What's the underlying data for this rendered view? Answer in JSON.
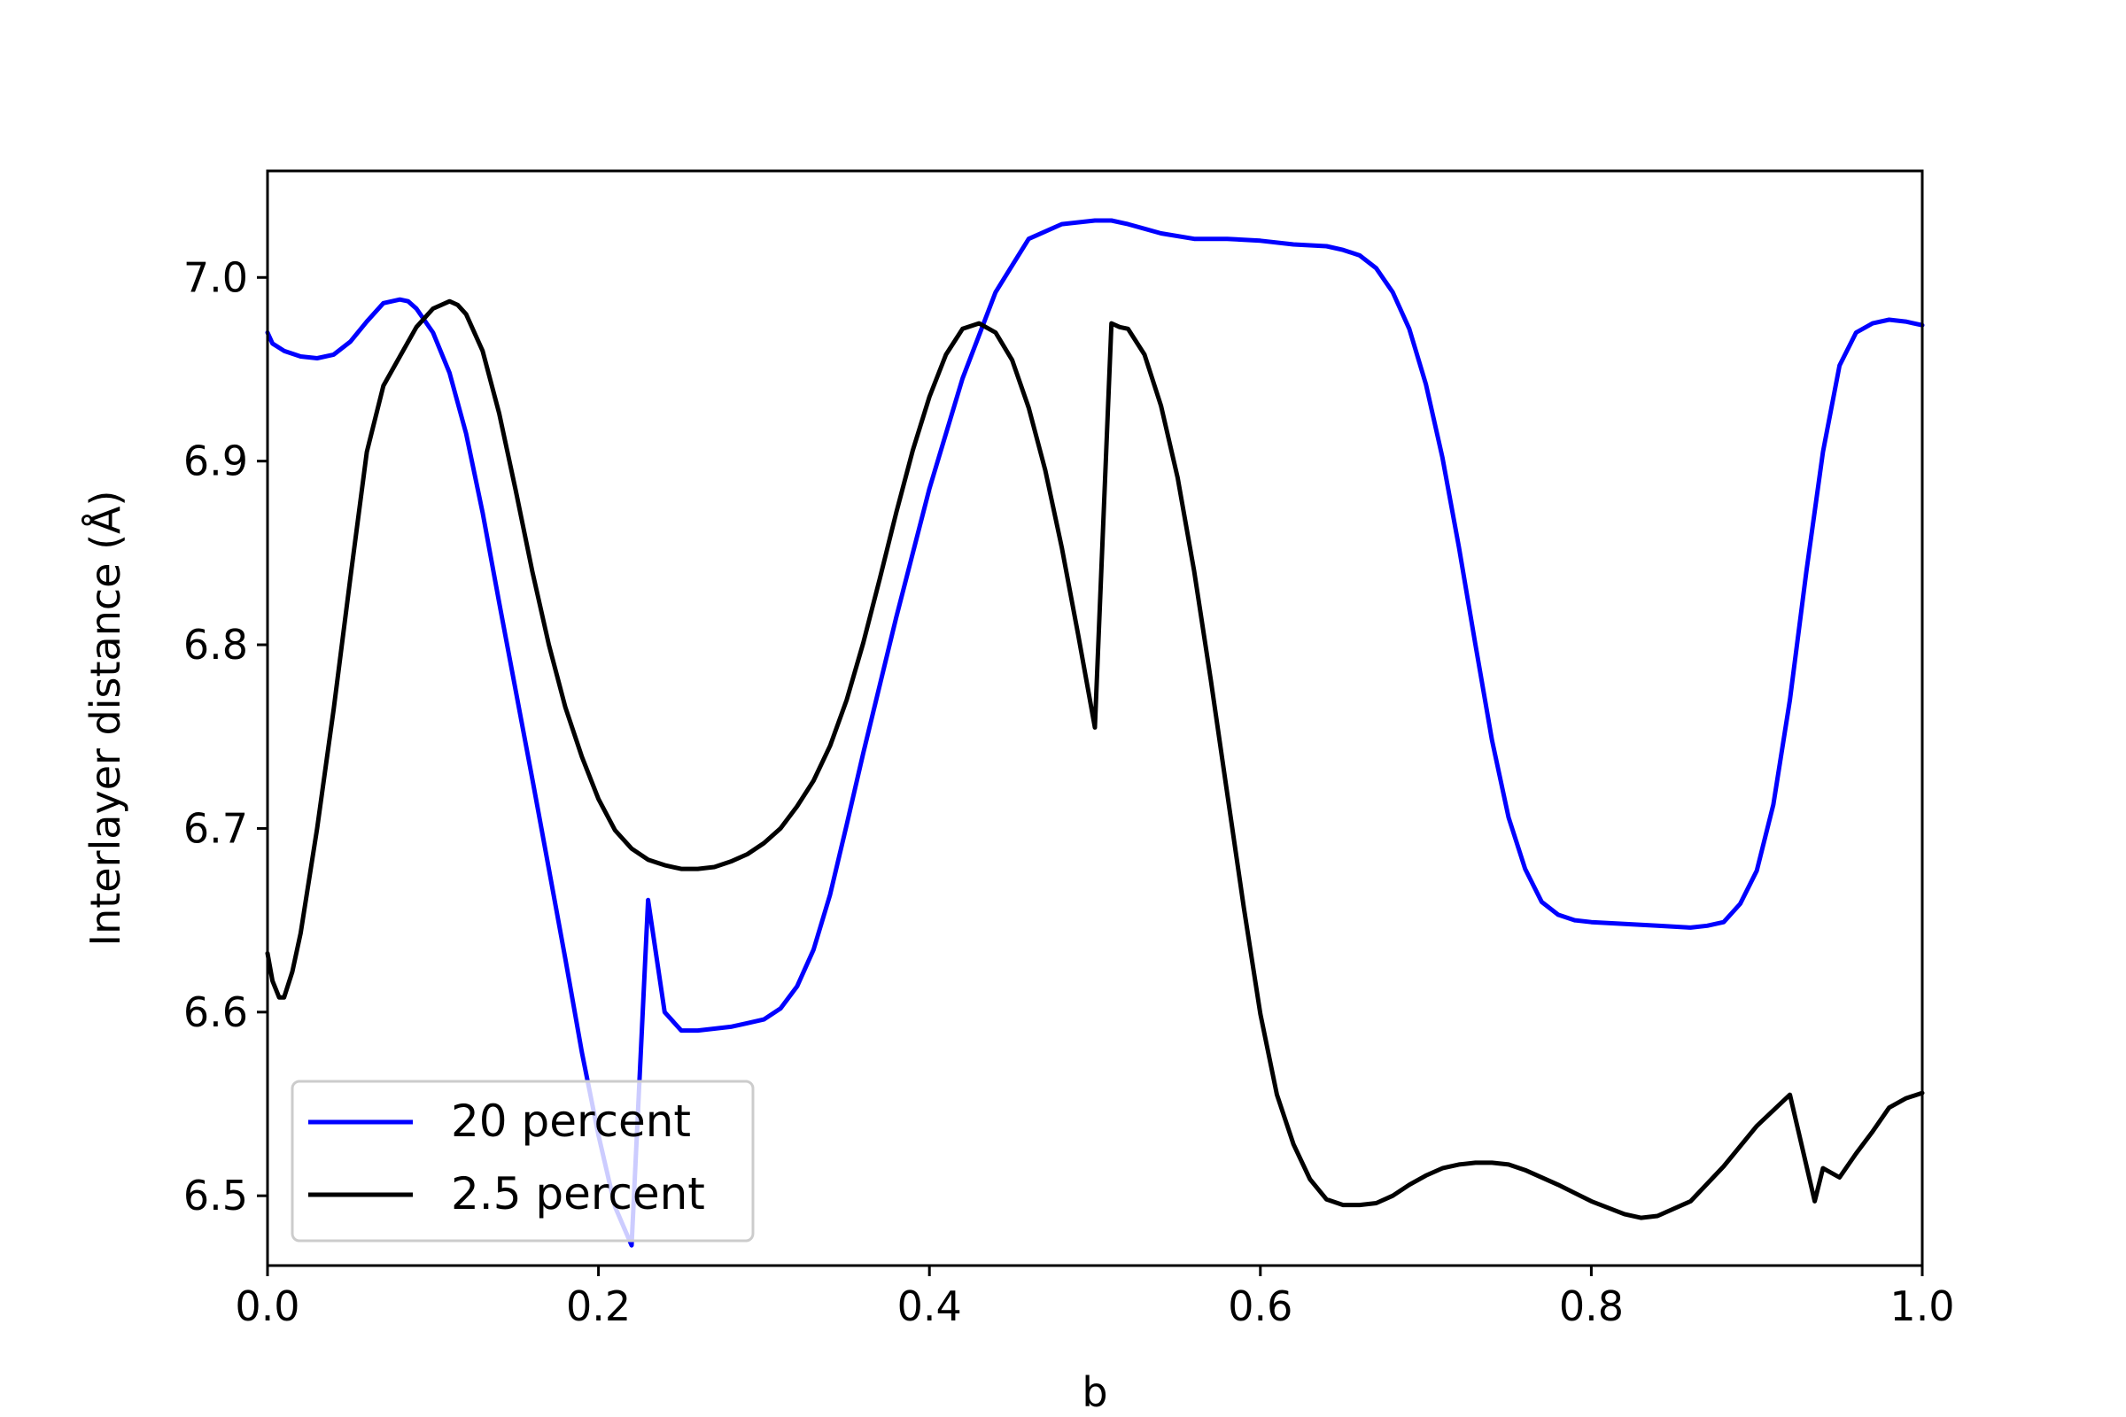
{
  "chart_data": {
    "type": "line",
    "title": "",
    "xlabel": "b",
    "ylabel": "Interlayer distance (Å)",
    "xlim": [
      0.0,
      1.0
    ],
    "ylim": [
      6.462,
      7.058
    ],
    "xticks": [
      "0.0",
      "0.2",
      "0.4",
      "0.6",
      "0.8",
      "1.0"
    ],
    "yticks": [
      "6.5",
      "6.6",
      "6.7",
      "6.8",
      "6.9",
      "7.0"
    ],
    "grid": false,
    "legend_position": "lower-left",
    "series": [
      {
        "name": "20 percent",
        "color": "#0000ff",
        "x": [
          0.0,
          0.003,
          0.01,
          0.02,
          0.03,
          0.04,
          0.05,
          0.06,
          0.07,
          0.08,
          0.085,
          0.09,
          0.1,
          0.11,
          0.12,
          0.13,
          0.14,
          0.15,
          0.16,
          0.17,
          0.18,
          0.19,
          0.2,
          0.21,
          0.22,
          0.23,
          0.24,
          0.25,
          0.26,
          0.27,
          0.28,
          0.29,
          0.3,
          0.31,
          0.32,
          0.33,
          0.34,
          0.35,
          0.36,
          0.38,
          0.4,
          0.42,
          0.44,
          0.46,
          0.48,
          0.5,
          0.51,
          0.52,
          0.54,
          0.56,
          0.58,
          0.6,
          0.62,
          0.64,
          0.65,
          0.66,
          0.67,
          0.68,
          0.69,
          0.7,
          0.71,
          0.72,
          0.73,
          0.74,
          0.75,
          0.76,
          0.77,
          0.78,
          0.79,
          0.8,
          0.82,
          0.84,
          0.86,
          0.87,
          0.88,
          0.89,
          0.9,
          0.91,
          0.92,
          0.93,
          0.94,
          0.95,
          0.96,
          0.97,
          0.98,
          0.99,
          1.0
        ],
        "y": [
          6.97,
          6.964,
          6.96,
          6.957,
          6.956,
          6.958,
          6.965,
          6.976,
          6.986,
          6.988,
          6.987,
          6.983,
          6.97,
          6.948,
          6.915,
          6.872,
          6.823,
          6.775,
          6.727,
          6.678,
          6.629,
          6.578,
          6.533,
          6.494,
          6.473,
          6.661,
          6.6,
          6.59,
          6.59,
          6.591,
          6.592,
          6.594,
          6.596,
          6.602,
          6.614,
          6.634,
          6.664,
          6.702,
          6.741,
          6.815,
          6.885,
          6.945,
          6.992,
          7.021,
          7.029,
          7.031,
          7.031,
          7.029,
          7.024,
          7.021,
          7.021,
          7.02,
          7.018,
          7.017,
          7.015,
          7.012,
          7.005,
          6.992,
          6.972,
          6.942,
          6.902,
          6.853,
          6.8,
          6.748,
          6.706,
          6.678,
          6.66,
          6.653,
          6.65,
          6.649,
          6.648,
          6.647,
          6.646,
          6.647,
          6.649,
          6.659,
          6.677,
          6.713,
          6.77,
          6.84,
          6.905,
          6.952,
          6.97,
          6.975,
          6.977,
          6.976,
          6.974
        ]
      },
      {
        "name": "2.5 percent",
        "color": "#000000",
        "x": [
          0.0,
          0.003,
          0.007,
          0.01,
          0.015,
          0.02,
          0.03,
          0.04,
          0.05,
          0.06,
          0.07,
          0.08,
          0.09,
          0.1,
          0.11,
          0.115,
          0.12,
          0.13,
          0.14,
          0.15,
          0.16,
          0.17,
          0.18,
          0.19,
          0.2,
          0.21,
          0.22,
          0.23,
          0.24,
          0.25,
          0.26,
          0.27,
          0.28,
          0.29,
          0.3,
          0.31,
          0.32,
          0.33,
          0.34,
          0.35,
          0.36,
          0.37,
          0.38,
          0.39,
          0.4,
          0.41,
          0.42,
          0.43,
          0.44,
          0.45,
          0.46,
          0.47,
          0.48,
          0.49,
          0.5,
          0.51,
          0.515,
          0.52,
          0.53,
          0.54,
          0.55,
          0.56,
          0.57,
          0.58,
          0.59,
          0.6,
          0.61,
          0.62,
          0.63,
          0.64,
          0.65,
          0.66,
          0.67,
          0.68,
          0.69,
          0.7,
          0.71,
          0.72,
          0.73,
          0.74,
          0.75,
          0.76,
          0.78,
          0.8,
          0.82,
          0.83,
          0.84,
          0.86,
          0.88,
          0.9,
          0.92,
          0.935,
          0.94,
          0.95,
          0.96,
          0.97,
          0.98,
          0.99,
          1.0
        ],
        "y": [
          6.632,
          6.617,
          6.608,
          6.608,
          6.622,
          6.643,
          6.7,
          6.765,
          6.836,
          6.905,
          6.941,
          6.957,
          6.973,
          6.983,
          6.987,
          6.985,
          6.98,
          6.96,
          6.926,
          6.884,
          6.84,
          6.8,
          6.766,
          6.739,
          6.716,
          6.699,
          6.689,
          6.683,
          6.68,
          6.678,
          6.678,
          6.679,
          6.682,
          6.686,
          6.692,
          6.7,
          6.712,
          6.726,
          6.745,
          6.77,
          6.801,
          6.836,
          6.872,
          6.906,
          6.935,
          6.958,
          6.972,
          6.975,
          6.97,
          6.955,
          6.929,
          6.895,
          6.853,
          6.805,
          6.755,
          6.975,
          6.973,
          6.972,
          6.958,
          6.93,
          6.891,
          6.84,
          6.781,
          6.719,
          6.657,
          6.599,
          6.555,
          6.528,
          6.509,
          6.498,
          6.495,
          6.495,
          6.496,
          6.5,
          6.506,
          6.511,
          6.515,
          6.517,
          6.518,
          6.518,
          6.517,
          6.514,
          6.506,
          6.497,
          6.49,
          6.488,
          6.489,
          6.497,
          6.516,
          6.538,
          6.555,
          6.497,
          6.515,
          6.51,
          6.523,
          6.535,
          6.548,
          6.553,
          6.556
        ]
      }
    ]
  }
}
